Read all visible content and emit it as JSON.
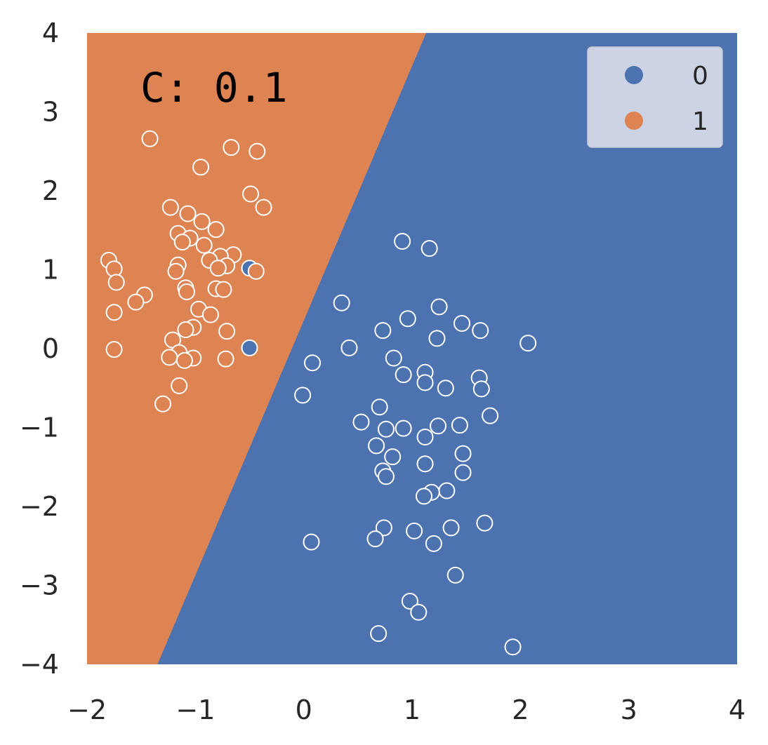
{
  "chart_data": {
    "type": "scatter",
    "title": "",
    "xlabel": "",
    "ylabel": "",
    "xlim": [
      -2,
      4
    ],
    "ylim": [
      -4,
      4
    ],
    "x_ticks": [
      "−2",
      "−1",
      "0",
      "1",
      "2",
      "3",
      "4"
    ],
    "y_ticks": [
      "−4",
      "−3",
      "−2",
      "−1",
      "0",
      "1",
      "2",
      "3",
      "4"
    ],
    "x_tick_values": [
      -2,
      -1,
      0,
      1,
      2,
      3,
      4
    ],
    "y_tick_values": [
      -4,
      -3,
      -2,
      -1,
      0,
      1,
      2,
      3,
      4
    ],
    "grid": false,
    "annotation": "C: 0.1",
    "decision_boundary": {
      "points": [
        [
          -1.35,
          -4
        ],
        [
          1.13,
          4
        ]
      ],
      "region_left_class": "1",
      "region_right_class": "0"
    },
    "legend": {
      "placement": "top-right",
      "entries": [
        {
          "label": "0",
          "color": "#4c72b0"
        },
        {
          "label": "1",
          "color": "#dd8452"
        }
      ]
    },
    "series": [
      {
        "name": "0",
        "color": "#4c72b0",
        "points": [
          [
            0.91,
            1.36
          ],
          [
            1.16,
            1.27
          ],
          [
            0.35,
            0.58
          ],
          [
            1.25,
            0.53
          ],
          [
            0.96,
            0.38
          ],
          [
            1.46,
            0.32
          ],
          [
            0.73,
            0.23
          ],
          [
            1.63,
            0.23
          ],
          [
            1.23,
            0.13
          ],
          [
            2.07,
            0.07
          ],
          [
            0.42,
            0.01
          ],
          [
            0.83,
            -0.12
          ],
          [
            0.08,
            -0.18
          ],
          [
            1.12,
            -0.3
          ],
          [
            0.92,
            -0.33
          ],
          [
            1.62,
            -0.37
          ],
          [
            1.12,
            -0.43
          ],
          [
            1.31,
            -0.5
          ],
          [
            1.64,
            -0.51
          ],
          [
            -0.01,
            -0.59
          ],
          [
            0.7,
            -0.74
          ],
          [
            1.72,
            -0.85
          ],
          [
            0.53,
            -0.93
          ],
          [
            1.44,
            -0.97
          ],
          [
            1.24,
            -0.98
          ],
          [
            0.92,
            -1.01
          ],
          [
            0.76,
            -1.02
          ],
          [
            1.12,
            -1.12
          ],
          [
            0.67,
            -1.23
          ],
          [
            1.47,
            -1.33
          ],
          [
            0.82,
            -1.37
          ],
          [
            1.12,
            -1.46
          ],
          [
            0.73,
            -1.55
          ],
          [
            1.47,
            -1.57
          ],
          [
            0.76,
            -1.62
          ],
          [
            1.32,
            -1.8
          ],
          [
            1.18,
            -1.82
          ],
          [
            1.11,
            -1.87
          ],
          [
            1.67,
            -2.21
          ],
          [
            0.74,
            -2.27
          ],
          [
            1.36,
            -2.27
          ],
          [
            1.02,
            -2.31
          ],
          [
            0.66,
            -2.41
          ],
          [
            0.07,
            -2.45
          ],
          [
            1.2,
            -2.47
          ],
          [
            1.4,
            -2.87
          ],
          [
            0.98,
            -3.2
          ],
          [
            1.06,
            -3.34
          ],
          [
            0.69,
            -3.61
          ],
          [
            1.93,
            -3.78
          ],
          [
            -0.5,
            1.02
          ],
          [
            -0.5,
            0.01
          ]
        ]
      },
      {
        "name": "1",
        "color": "#dd8452",
        "points": [
          [
            -1.42,
            2.66
          ],
          [
            -0.67,
            2.55
          ],
          [
            -0.43,
            2.5
          ],
          [
            -0.95,
            2.3
          ],
          [
            -0.49,
            1.96
          ],
          [
            -0.37,
            1.79
          ],
          [
            -1.23,
            1.79
          ],
          [
            -1.07,
            1.71
          ],
          [
            -0.94,
            1.61
          ],
          [
            -0.81,
            1.51
          ],
          [
            -1.16,
            1.46
          ],
          [
            -1.05,
            1.4
          ],
          [
            -1.12,
            1.35
          ],
          [
            -0.92,
            1.31
          ],
          [
            -0.65,
            1.19
          ],
          [
            -0.77,
            1.17
          ],
          [
            -0.87,
            1.12
          ],
          [
            -1.8,
            1.12
          ],
          [
            -1.16,
            1.06
          ],
          [
            -0.71,
            1.05
          ],
          [
            -0.79,
            1.02
          ],
          [
            -1.75,
            1.01
          ],
          [
            -1.18,
            0.98
          ],
          [
            -0.44,
            0.98
          ],
          [
            -1.73,
            0.84
          ],
          [
            -1.09,
            0.77
          ],
          [
            -0.81,
            0.76
          ],
          [
            -0.74,
            0.75
          ],
          [
            -1.08,
            0.72
          ],
          [
            -1.47,
            0.68
          ],
          [
            -1.55,
            0.59
          ],
          [
            -0.97,
            0.5
          ],
          [
            -1.75,
            0.46
          ],
          [
            -0.86,
            0.43
          ],
          [
            -1.02,
            0.27
          ],
          [
            -1.09,
            0.24
          ],
          [
            -0.71,
            0.22
          ],
          [
            -1.21,
            0.11
          ],
          [
            -1.75,
            -0.01
          ],
          [
            -1.15,
            -0.05
          ],
          [
            -1.24,
            -0.11
          ],
          [
            -1.02,
            -0.12
          ],
          [
            -0.72,
            -0.13
          ],
          [
            -1.1,
            -0.15
          ],
          [
            -1.15,
            -0.47
          ],
          [
            -1.3,
            -0.7
          ]
        ]
      }
    ]
  }
}
